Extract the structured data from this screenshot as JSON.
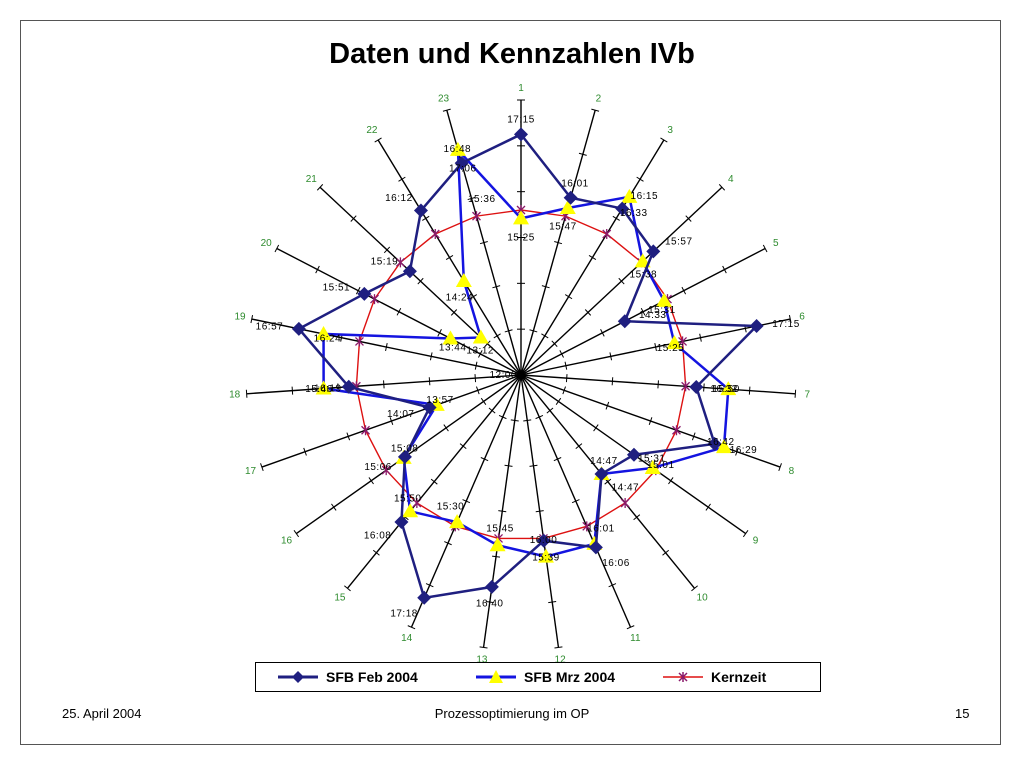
{
  "slide": {
    "title": "Daten und Kennzahlen IVb",
    "date": "25. April 2004",
    "footer_text": "Prozessoptimierung im OP",
    "page_number": "15"
  },
  "colors": {
    "feb": "#1f1f80",
    "mrz": "#1414e0",
    "mrz_marker": "#ffff00",
    "kern": "#dd1111",
    "kern_marker": "#8b1a6b",
    "spoke_number": "#2e8b2e"
  },
  "chart_data": {
    "type": "radar",
    "title": "",
    "center_label": "12:00",
    "categories": [
      "1",
      "2",
      "3",
      "4",
      "5",
      "6",
      "7",
      "8",
      "9",
      "10",
      "11",
      "12",
      "13",
      "14",
      "15",
      "16",
      "17",
      "18",
      "19",
      "20",
      "21",
      "22",
      "23"
    ],
    "series": [
      {
        "name": "SFB Feb 2004",
        "color": "#1f1f80",
        "marker": "diamond",
        "time_labels": [
          "17:15",
          "16:01",
          "16:15",
          "15:57",
          "14:33",
          "17:15",
          "15:50",
          "16:29",
          "15:01",
          "14:47",
          "16:06",
          "15:39",
          "16:40",
          "17:18",
          "16:08",
          "15:06",
          "14:07",
          "15:46",
          "16:57",
          "15:51",
          "15:19",
          "16:12",
          "16:48"
        ],
        "minutes": [
          1035,
          961,
          975,
          957,
          873,
          1035,
          950,
          989,
          901,
          887,
          966,
          939,
          1000,
          1038,
          968,
          906,
          847,
          946,
          1017,
          951,
          919,
          972,
          1008
        ]
      },
      {
        "name": "SFB Mrz 2004",
        "color": "#1414e0",
        "marker": "triangle",
        "time_labels": [
          "15:25",
          "15:47",
          "16:33",
          "15:38",
          "15:31",
          "15:25",
          "16:32",
          "16:42",
          "15:31",
          "14:47",
          "16:01",
          "16:00",
          "15:45",
          "15:30",
          "15:50",
          "15:08",
          "13:57",
          "16:19",
          "16:24",
          "13:44",
          "13:12",
          "14:24",
          "17:06"
        ],
        "minutes": [
          925,
          947,
          993,
          938,
          931,
          925,
          992,
          1002,
          931,
          887,
          961,
          960,
          945,
          930,
          950,
          908,
          837,
          979,
          984,
          824,
          792,
          864,
          1026
        ]
      },
      {
        "name": "Kernzeit",
        "color": "#dd1111",
        "marker": "star",
        "time_labels": [
          "15:36"
        ],
        "minutes": [
          936,
          936,
          936,
          936,
          936,
          936,
          936,
          936,
          936,
          936,
          936,
          936,
          936,
          936,
          936,
          936,
          936,
          936,
          936,
          936,
          936,
          936,
          936
        ]
      }
    ]
  }
}
